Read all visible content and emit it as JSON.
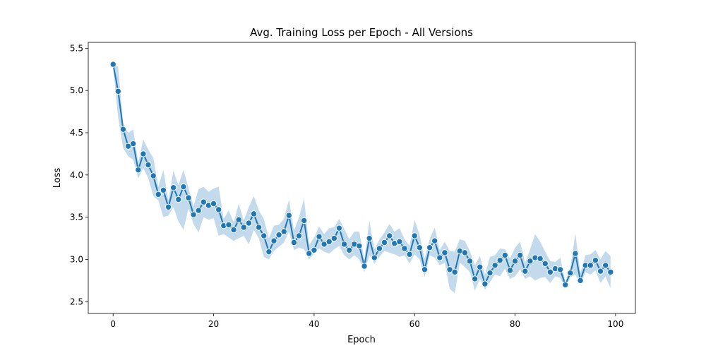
{
  "chart_data": {
    "type": "line",
    "title": "Avg. Training Loss per Epoch - All Versions",
    "xlabel": "Epoch",
    "ylabel": "Loss",
    "xlim": [
      -4.95,
      103.95
    ],
    "ylim": [
      2.36,
      5.57
    ],
    "xticks": [
      0,
      20,
      40,
      60,
      80,
      100
    ],
    "yticks": [
      2.5,
      3.0,
      3.5,
      4.0,
      4.5,
      5.0,
      5.5
    ],
    "grid": false,
    "legend": "none",
    "colors": {
      "line": "#1f77b4",
      "band": "#aecde6",
      "marker_edge": "#ffffff"
    },
    "series": [
      {
        "x": [
          0,
          1,
          2,
          3,
          4,
          5,
          6,
          7,
          8,
          9,
          10,
          11,
          12,
          13,
          14,
          15,
          16,
          17,
          18,
          19,
          20,
          21,
          22,
          23,
          24,
          25,
          26,
          27,
          28,
          29,
          30,
          31,
          32,
          33,
          34,
          35,
          36,
          37,
          38,
          39,
          40,
          41,
          42,
          43,
          44,
          45,
          46,
          47,
          48,
          49,
          50,
          51,
          52,
          53,
          54,
          55,
          56,
          57,
          58,
          59,
          60,
          61,
          62,
          63,
          64,
          65,
          66,
          67,
          68,
          69,
          70,
          71,
          72,
          73,
          74,
          75,
          76,
          77,
          78,
          79,
          80,
          81,
          82,
          83,
          84,
          85,
          86,
          87,
          88,
          89,
          90,
          91,
          92,
          93,
          94,
          95,
          96,
          97,
          98,
          99
        ],
        "y": [
          5.31,
          4.99,
          4.54,
          4.34,
          4.37,
          4.06,
          4.25,
          4.12,
          3.99,
          3.77,
          3.82,
          3.62,
          3.85,
          3.71,
          3.86,
          3.73,
          3.53,
          3.58,
          3.68,
          3.64,
          3.66,
          3.59,
          3.4,
          3.41,
          3.35,
          3.47,
          3.38,
          3.43,
          3.54,
          3.38,
          3.28,
          3.09,
          3.22,
          3.29,
          3.33,
          3.52,
          3.2,
          3.28,
          3.46,
          3.07,
          3.11,
          3.27,
          3.18,
          3.21,
          3.25,
          3.37,
          3.18,
          3.11,
          3.18,
          3.16,
          2.92,
          3.25,
          3.02,
          3.13,
          3.2,
          3.28,
          3.19,
          3.21,
          3.13,
          3.06,
          3.28,
          3.14,
          2.88,
          3.14,
          3.22,
          3.02,
          3.08,
          2.88,
          2.85,
          3.1,
          3.08,
          2.98,
          2.77,
          2.91,
          2.71,
          2.84,
          2.93,
          2.99,
          3.05,
          2.87,
          2.98,
          3.05,
          2.86,
          2.98,
          3.02,
          3.01,
          2.95,
          2.85,
          2.89,
          2.88,
          2.7,
          2.84,
          3.07,
          2.75,
          2.93,
          2.93,
          2.99,
          2.86,
          2.93,
          2.85
        ],
        "y_lower": [
          5.28,
          4.68,
          4.32,
          4.22,
          4.18,
          3.96,
          4.08,
          3.96,
          3.75,
          3.7,
          3.5,
          3.52,
          3.62,
          3.45,
          3.35,
          3.6,
          3.42,
          3.32,
          3.5,
          3.47,
          3.49,
          3.28,
          3.3,
          3.26,
          3.22,
          3.25,
          3.28,
          3.18,
          3.35,
          3.25,
          3.03,
          3.0,
          3.1,
          3.15,
          3.2,
          3.33,
          3.11,
          3.14,
          3.12,
          3.0,
          3.07,
          3.13,
          3.09,
          3.07,
          3.12,
          3.16,
          3.05,
          3.0,
          3.05,
          3.0,
          2.85,
          3.05,
          2.95,
          3.03,
          3.1,
          3.08,
          3.06,
          3.03,
          3.05,
          2.95,
          3.06,
          3.0,
          2.79,
          3.05,
          3.02,
          2.93,
          2.96,
          2.65,
          2.6,
          2.96,
          2.91,
          2.85,
          2.63,
          2.77,
          2.64,
          2.73,
          2.82,
          2.8,
          2.89,
          2.77,
          2.8,
          2.88,
          2.77,
          2.8,
          2.75,
          2.78,
          2.79,
          2.72,
          2.8,
          2.78,
          2.66,
          2.79,
          2.82,
          2.7,
          2.85,
          2.82,
          2.87,
          2.72,
          2.8,
          2.66
        ],
        "y_upper": [
          5.34,
          5.28,
          4.6,
          4.5,
          4.54,
          4.15,
          4.42,
          4.3,
          4.2,
          3.86,
          4.06,
          3.7,
          4.05,
          3.88,
          4.06,
          3.85,
          3.63,
          3.83,
          3.86,
          3.8,
          3.84,
          3.86,
          3.48,
          3.58,
          3.44,
          3.66,
          3.46,
          3.62,
          3.75,
          3.58,
          3.48,
          3.25,
          3.4,
          3.41,
          3.48,
          3.71,
          3.34,
          3.5,
          3.72,
          3.17,
          3.26,
          3.39,
          3.3,
          3.37,
          3.38,
          3.48,
          3.36,
          3.24,
          3.33,
          3.33,
          3.0,
          3.46,
          3.12,
          3.23,
          3.32,
          3.42,
          3.33,
          3.37,
          3.24,
          3.16,
          3.47,
          3.29,
          3.01,
          3.24,
          3.38,
          3.11,
          3.21,
          3.1,
          3.09,
          3.24,
          3.22,
          3.1,
          2.93,
          3.04,
          2.82,
          3.03,
          3.05,
          3.13,
          3.12,
          3.01,
          3.14,
          3.21,
          2.96,
          3.12,
          3.3,
          3.21,
          3.09,
          2.98,
          2.97,
          3.02,
          2.74,
          2.9,
          3.31,
          2.84,
          3.05,
          3.06,
          3.11,
          3.0,
          3.1,
          3.04
        ]
      }
    ]
  }
}
